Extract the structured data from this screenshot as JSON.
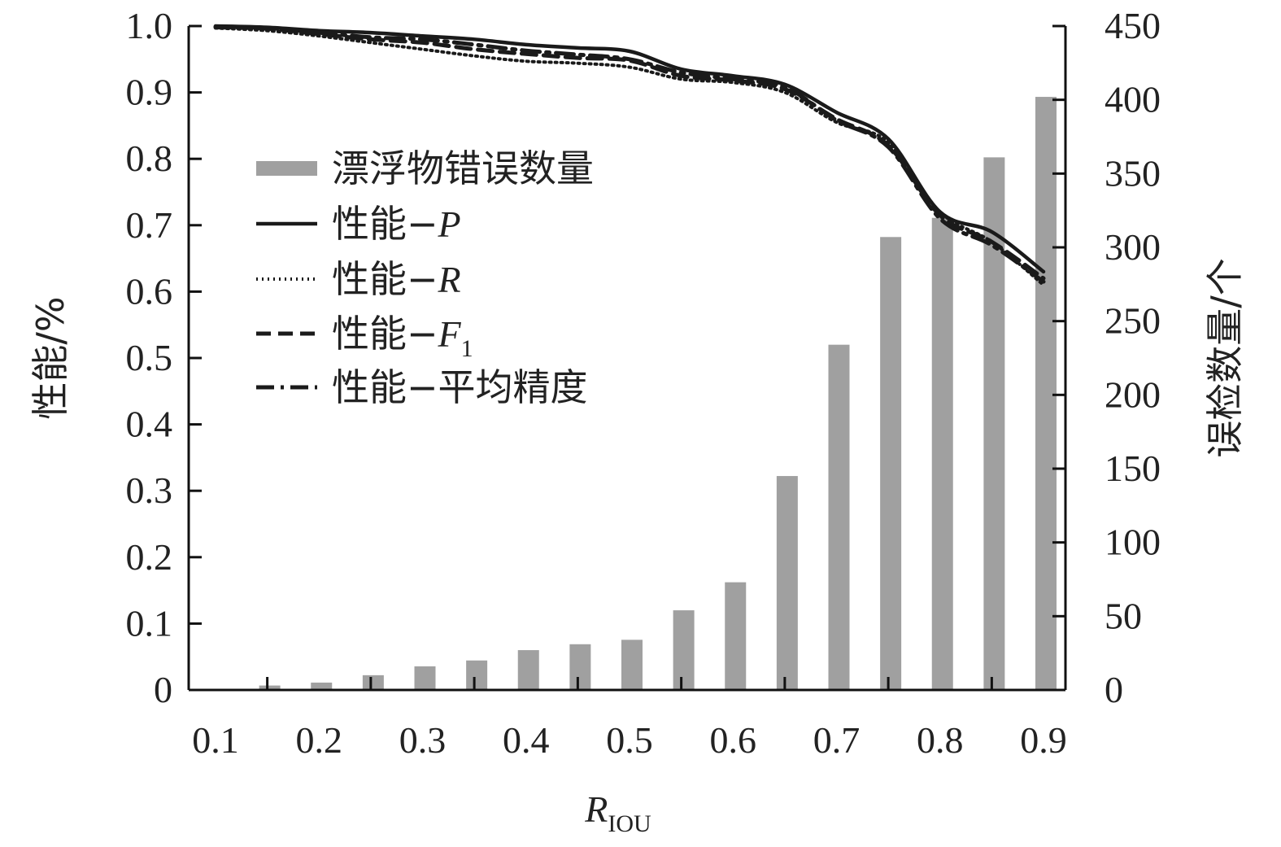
{
  "chart_data": {
    "type": "bar+line",
    "x": [
      0.1,
      0.15,
      0.2,
      0.25,
      0.3,
      0.35,
      0.4,
      0.45,
      0.5,
      0.55,
      0.6,
      0.65,
      0.7,
      0.75,
      0.8,
      0.85,
      0.9
    ],
    "x_ticks": [
      "0.1",
      "0.2",
      "0.3",
      "0.4",
      "0.5",
      "0.6",
      "0.7",
      "0.8",
      "0.9"
    ],
    "x_tick_values": [
      0.1,
      0.2,
      0.3,
      0.4,
      0.5,
      0.6,
      0.7,
      0.8,
      0.9
    ],
    "xlim": [
      0.1,
      0.9
    ],
    "xlabel_main": "R",
    "xlabel_sub": "IOU",
    "ylabel_left": "性能/%",
    "ylabel_right": "误检数量/个",
    "ylim_left": [
      0,
      1.0
    ],
    "ylim_right": [
      0,
      450
    ],
    "y_ticks_left": [
      "0",
      "0.1",
      "0.2",
      "0.3",
      "0.4",
      "0.5",
      "0.6",
      "0.7",
      "0.8",
      "0.9",
      "1.0"
    ],
    "y_ticks_right": [
      "0",
      "50",
      "100",
      "150",
      "200",
      "250",
      "300",
      "350",
      "400",
      "450"
    ],
    "bars": {
      "name": "漂浮物错误数量",
      "color": "#a0a0a0",
      "x": [
        0.15,
        0.2,
        0.25,
        0.3,
        0.35,
        0.4,
        0.45,
        0.5,
        0.55,
        0.6,
        0.65,
        0.7,
        0.75,
        0.8,
        0.85,
        0.9
      ],
      "values": [
        3,
        5,
        10,
        16,
        20,
        27,
        31,
        34,
        54,
        73,
        145,
        234,
        307,
        320,
        361,
        402
      ]
    },
    "series": [
      {
        "name_prefix": "性能−",
        "name_main": "P",
        "name_sub": "",
        "italic": true,
        "style": "solid",
        "values": [
          1.0,
          0.998,
          0.993,
          0.99,
          0.985,
          0.98,
          0.972,
          0.967,
          0.962,
          0.935,
          0.925,
          0.912,
          0.87,
          0.83,
          0.72,
          0.69,
          0.63
        ]
      },
      {
        "name_prefix": "性能−",
        "name_main": "R",
        "name_sub": "",
        "italic": true,
        "style": "dotted",
        "values": [
          0.997,
          0.993,
          0.985,
          0.975,
          0.965,
          0.955,
          0.947,
          0.944,
          0.938,
          0.92,
          0.915,
          0.9,
          0.855,
          0.825,
          0.72,
          0.675,
          0.61
        ]
      },
      {
        "name_prefix": "性能−",
        "name_main": "F",
        "name_sub": "1",
        "italic": true,
        "style": "dashed",
        "values": [
          0.998,
          0.996,
          0.988,
          0.98,
          0.975,
          0.965,
          0.958,
          0.952,
          0.948,
          0.925,
          0.918,
          0.905,
          0.86,
          0.82,
          0.715,
          0.675,
          0.62
        ]
      },
      {
        "name_prefix": "性能−",
        "name_main": "平均精度",
        "name_sub": "",
        "italic": false,
        "style": "dashdot",
        "values": [
          0.999,
          0.997,
          0.99,
          0.983,
          0.98,
          0.972,
          0.963,
          0.957,
          0.95,
          0.93,
          0.92,
          0.908,
          0.858,
          0.818,
          0.71,
          0.67,
          0.615
        ]
      }
    ]
  }
}
